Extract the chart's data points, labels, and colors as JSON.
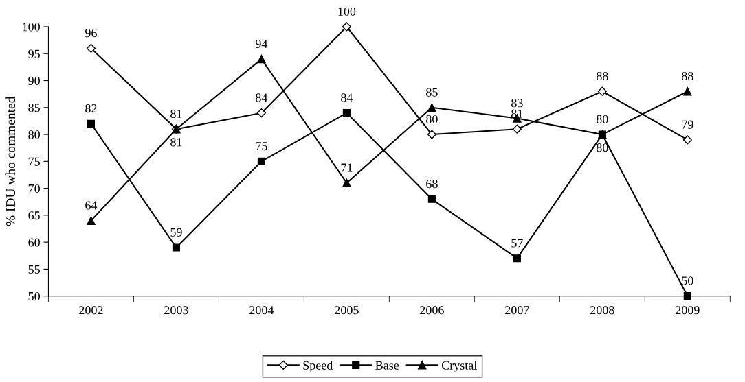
{
  "chart_data": {
    "type": "line",
    "ylabel": "% IDU who commented",
    "categories": [
      "2002",
      "2003",
      "2004",
      "2005",
      "2006",
      "2007",
      "2008",
      "2009"
    ],
    "series": [
      {
        "name": "Speed",
        "color": "#000000",
        "marker": "diamond",
        "values": [
          96,
          81,
          84,
          100,
          80,
          81,
          88,
          79
        ]
      },
      {
        "name": "Base",
        "color": "#000000",
        "marker": "square",
        "values": [
          82,
          59,
          75,
          84,
          68,
          57,
          80,
          50
        ]
      },
      {
        "name": "Crystal",
        "color": "#000000",
        "marker": "triangle",
        "values": [
          64,
          81,
          94,
          71,
          85,
          83,
          80,
          88
        ]
      }
    ],
    "ylim": [
      50,
      100
    ],
    "yticks": [
      50,
      55,
      60,
      65,
      70,
      75,
      80,
      85,
      90,
      95,
      100
    ],
    "data_labels": true,
    "grid": false,
    "legend": "bottom",
    "line_style": "solid"
  }
}
